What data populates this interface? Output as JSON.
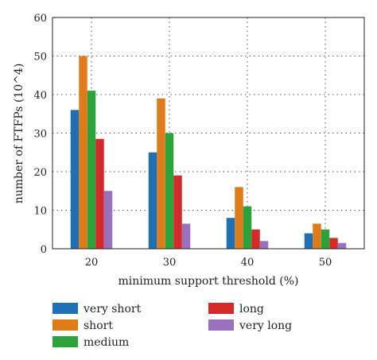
{
  "chart_data": {
    "type": "bar",
    "title": "",
    "xlabel": "minimum support threshold (%)",
    "ylabel": "number of FTFPs (10^4)",
    "categories": [
      "20",
      "30",
      "40",
      "50"
    ],
    "ylim": [
      0,
      60
    ],
    "yticks": [
      0,
      10,
      20,
      30,
      40,
      50,
      60
    ],
    "grid": true,
    "legend_position": "bottom",
    "series": [
      {
        "name": "very short",
        "color": "#1f6fb4",
        "values": [
          36,
          25,
          8,
          4
        ]
      },
      {
        "name": "short",
        "color": "#e07b1a",
        "values": [
          50,
          39,
          16,
          6.5
        ]
      },
      {
        "name": "medium",
        "color": "#2ca33a",
        "values": [
          41,
          30,
          11,
          5
        ]
      },
      {
        "name": "long",
        "color": "#d42a2a",
        "values": [
          28.5,
          19,
          5,
          2.8
        ]
      },
      {
        "name": "very long",
        "color": "#9a71bd",
        "values": [
          15,
          6.5,
          2,
          1.5
        ]
      }
    ]
  }
}
